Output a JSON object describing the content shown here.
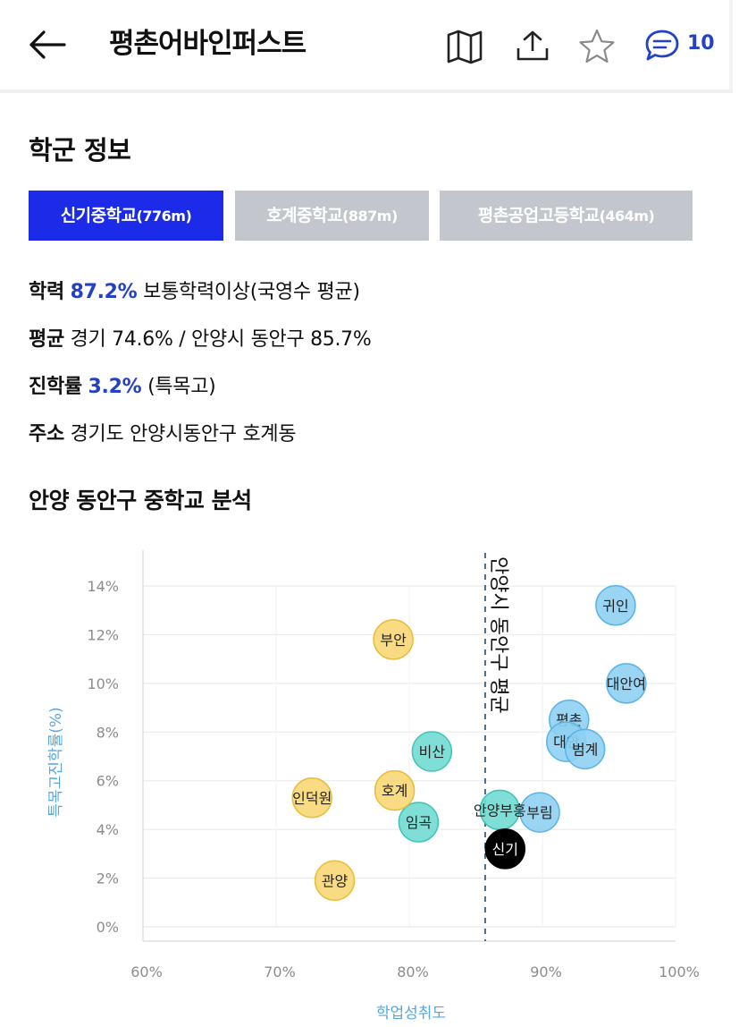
{
  "header": {
    "title": "평촌어바인퍼스트",
    "comment_count": "10",
    "icons": [
      "back-arrow-icon",
      "map-icon",
      "share-icon",
      "star-icon",
      "comment-icon"
    ]
  },
  "school_info": {
    "section_title": "학군 정보",
    "tabs": [
      {
        "name": "신기중학교",
        "distance": "(776m)",
        "active": true
      },
      {
        "name": "호계중학교",
        "distance": "(887m)",
        "active": false
      },
      {
        "name": "평촌공업고등학교",
        "distance": "(464m)",
        "active": false
      }
    ],
    "rows": {
      "achievement": {
        "label": "학력",
        "value": "87.2%",
        "suffix": "보통학력이상(국영수 평균)"
      },
      "average": {
        "label": "평균",
        "text": "경기 74.6% / 안양시 동안구 85.7%"
      },
      "advancement": {
        "label": "진학률",
        "value": "3.2%",
        "suffix": "(특목고)"
      },
      "address": {
        "label": "주소",
        "text": "경기도 안양시동안구 호계동"
      }
    }
  },
  "analysis": {
    "title": "안양 동안구 중학교 분석"
  },
  "colors": {
    "accent": "#2340c9",
    "tab_active": "#1b2be8",
    "tab_inactive": "#c3c6cd",
    "bubble_yellow": "#f7d774",
    "bubble_teal": "#71dcd3",
    "bubble_blue": "#8fd0f2",
    "bubble_black": "#000000"
  },
  "chart_data": {
    "type": "scatter",
    "xlabel": "학업성취도",
    "ylabel": "특목고진학률(%)",
    "x_ticks": [
      "60%",
      "70%",
      "80%",
      "90%",
      "100%"
    ],
    "y_ticks": [
      "0%",
      "2%",
      "4%",
      "6%",
      "8%",
      "10%",
      "12%",
      "14%"
    ],
    "xlim": [
      60,
      100
    ],
    "ylim": [
      0,
      14
    ],
    "grid": true,
    "reference_line": {
      "x": 85.7,
      "label": "안양시 동안구 평균"
    },
    "points": [
      {
        "label": "귀인",
        "x": 95.5,
        "y": 13.2,
        "group": "blue"
      },
      {
        "label": "대안여",
        "x": 96.3,
        "y": 10.0,
        "group": "blue"
      },
      {
        "label": "평촌",
        "x": 92.0,
        "y": 8.5,
        "group": "blue"
      },
      {
        "label": "대안",
        "x": 91.8,
        "y": 7.6,
        "group": "blue"
      },
      {
        "label": "범계",
        "x": 93.2,
        "y": 7.3,
        "group": "blue"
      },
      {
        "label": "부림",
        "x": 89.8,
        "y": 4.7,
        "group": "blue"
      },
      {
        "label": "안양부흥",
        "x": 86.8,
        "y": 4.8,
        "group": "teal"
      },
      {
        "label": "비산",
        "x": 81.7,
        "y": 7.2,
        "group": "teal"
      },
      {
        "label": "임곡",
        "x": 80.7,
        "y": 4.3,
        "group": "teal"
      },
      {
        "label": "부안",
        "x": 78.8,
        "y": 11.8,
        "group": "yellow"
      },
      {
        "label": "호계",
        "x": 78.9,
        "y": 5.6,
        "group": "yellow"
      },
      {
        "label": "인덕원",
        "x": 72.7,
        "y": 5.3,
        "group": "yellow"
      },
      {
        "label": "관양",
        "x": 74.4,
        "y": 1.9,
        "group": "yellow"
      },
      {
        "label": "신기",
        "x": 87.2,
        "y": 3.2,
        "group": "black"
      }
    ]
  }
}
